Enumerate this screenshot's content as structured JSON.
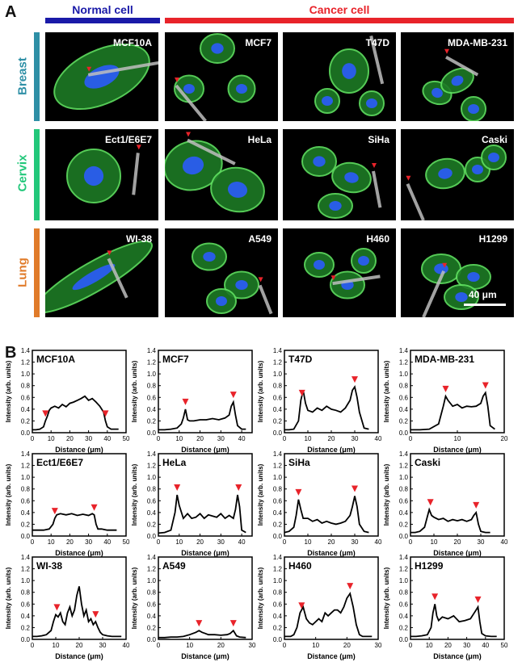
{
  "panel_a": {
    "letter": "A",
    "normal_header": "Normal cell",
    "cancer_header": "Cancer cell",
    "colors": {
      "normal": "#1a1aa8",
      "cancer": "#e8232a",
      "breast": "#2e8fa6",
      "cervix": "#22c77a",
      "lung": "#e07b2a"
    },
    "organs": [
      "Breast",
      "Cervix",
      "Lung"
    ],
    "rows": [
      [
        "MCF10A",
        "MCF7",
        "T47D",
        "MDA-MB-231"
      ],
      [
        "Ect1/E6E7",
        "HeLa",
        "SiHa",
        "Caski"
      ],
      [
        "WI-38",
        "A549",
        "H460",
        "H1299"
      ]
    ],
    "scale_bar": "40 μm"
  },
  "panel_b": {
    "letter": "B",
    "xlabel": "Distance (μm)",
    "ylabel": "Intensity (arb. units)"
  },
  "chart_data": [
    {
      "type": "line",
      "title": "MCF10A",
      "xlim": [
        0,
        50
      ],
      "ylim": [
        0,
        1.4
      ],
      "xticks": [
        0,
        10,
        20,
        30,
        40,
        50
      ],
      "yticks": [
        0.0,
        0.2,
        0.4,
        0.6,
        0.8,
        1.0,
        1.2,
        1.4
      ],
      "x": [
        0,
        2,
        4,
        6,
        7,
        8,
        9,
        10,
        12,
        14,
        16,
        18,
        20,
        22,
        24,
        26,
        28,
        30,
        32,
        34,
        36,
        38,
        39,
        40,
        42,
        44,
        46
      ],
      "y": [
        0.05,
        0.05,
        0.06,
        0.1,
        0.2,
        0.28,
        0.38,
        0.42,
        0.45,
        0.42,
        0.48,
        0.44,
        0.5,
        0.52,
        0.55,
        0.58,
        0.62,
        0.55,
        0.58,
        0.52,
        0.45,
        0.35,
        0.2,
        0.1,
        0.06,
        0.06,
        0.06
      ],
      "markers": [
        7,
        39
      ]
    },
    {
      "type": "line",
      "title": "MCF7",
      "xlim": [
        0,
        45
      ],
      "ylim": [
        0,
        1.4
      ],
      "xticks": [
        0,
        10,
        20,
        30,
        40
      ],
      "yticks": [
        0.0,
        0.2,
        0.4,
        0.6,
        0.8,
        1.0,
        1.2,
        1.4
      ],
      "x": [
        0,
        3,
        6,
        9,
        11,
        12,
        13,
        14,
        15,
        17,
        20,
        23,
        26,
        29,
        32,
        34,
        35,
        36,
        37,
        38,
        40,
        42
      ],
      "y": [
        0.05,
        0.05,
        0.06,
        0.08,
        0.15,
        0.25,
        0.4,
        0.22,
        0.2,
        0.2,
        0.22,
        0.22,
        0.24,
        0.22,
        0.25,
        0.3,
        0.45,
        0.52,
        0.3,
        0.12,
        0.06,
        0.06
      ],
      "markers": [
        13,
        36
      ]
    },
    {
      "type": "line",
      "title": "T47D",
      "xlim": [
        0,
        40
      ],
      "ylim": [
        0,
        1.4
      ],
      "xticks": [
        0,
        10,
        20,
        30,
        40
      ],
      "yticks": [
        0.0,
        0.2,
        0.4,
        0.6,
        0.8,
        1.0,
        1.2,
        1.4
      ],
      "x": [
        0,
        2,
        4,
        6,
        7,
        8,
        9,
        10,
        12,
        14,
        16,
        18,
        20,
        22,
        24,
        26,
        28,
        29,
        30,
        31,
        32,
        34,
        36
      ],
      "y": [
        0.05,
        0.05,
        0.06,
        0.2,
        0.55,
        0.72,
        0.5,
        0.38,
        0.35,
        0.42,
        0.38,
        0.45,
        0.4,
        0.38,
        0.35,
        0.42,
        0.55,
        0.72,
        0.78,
        0.6,
        0.35,
        0.08,
        0.06
      ],
      "markers": [
        7.5,
        30
      ]
    },
    {
      "type": "line",
      "title": "MDA-MB-231",
      "xlim": [
        0,
        20
      ],
      "ylim": [
        0,
        1.4
      ],
      "xticks": [
        0,
        10,
        20
      ],
      "yticks": [
        0.0,
        0.2,
        0.4,
        0.6,
        0.8,
        1.0,
        1.2,
        1.4
      ],
      "x": [
        0,
        2,
        4,
        6,
        7,
        7.5,
        8,
        9,
        10,
        11,
        12,
        13,
        14,
        15,
        15.5,
        16,
        16.5,
        17,
        18
      ],
      "y": [
        0.05,
        0.05,
        0.06,
        0.15,
        0.45,
        0.62,
        0.55,
        0.45,
        0.48,
        0.42,
        0.45,
        0.44,
        0.45,
        0.5,
        0.62,
        0.68,
        0.45,
        0.12,
        0.06
      ],
      "markers": [
        7.5,
        16
      ]
    },
    {
      "type": "line",
      "title": "Ect1/E6E7",
      "xlim": [
        0,
        50
      ],
      "ylim": [
        0,
        1.4
      ],
      "xticks": [
        0,
        10,
        20,
        30,
        40,
        50
      ],
      "yticks": [
        0.0,
        0.2,
        0.4,
        0.6,
        0.8,
        1.0,
        1.2,
        1.4
      ],
      "x": [
        0,
        3,
        6,
        9,
        11,
        12,
        13,
        15,
        18,
        21,
        24,
        27,
        30,
        32,
        33,
        34,
        35,
        37,
        40,
        43,
        45
      ],
      "y": [
        0.1,
        0.1,
        0.1,
        0.12,
        0.2,
        0.3,
        0.36,
        0.38,
        0.36,
        0.38,
        0.35,
        0.37,
        0.35,
        0.38,
        0.36,
        0.2,
        0.12,
        0.12,
        0.1,
        0.1,
        0.1
      ],
      "markers": [
        12,
        33
      ]
    },
    {
      "type": "line",
      "title": "HeLa",
      "xlim": [
        0,
        45
      ],
      "ylim": [
        0,
        1.4
      ],
      "xticks": [
        0,
        10,
        20,
        30,
        40
      ],
      "yticks": [
        0.0,
        0.2,
        0.4,
        0.6,
        0.8,
        1.0,
        1.2,
        1.4
      ],
      "x": [
        0,
        3,
        6,
        8,
        9,
        10,
        12,
        14,
        16,
        18,
        20,
        22,
        24,
        26,
        28,
        30,
        32,
        34,
        36,
        37,
        38,
        39,
        40,
        42
      ],
      "y": [
        0.05,
        0.06,
        0.1,
        0.4,
        0.7,
        0.52,
        0.3,
        0.38,
        0.3,
        0.32,
        0.38,
        0.3,
        0.36,
        0.34,
        0.32,
        0.38,
        0.3,
        0.35,
        0.3,
        0.45,
        0.7,
        0.5,
        0.1,
        0.06
      ],
      "markers": [
        9,
        38.5
      ]
    },
    {
      "type": "line",
      "title": "SiHa",
      "xlim": [
        0,
        40
      ],
      "ylim": [
        0,
        1.4
      ],
      "xticks": [
        0,
        10,
        20,
        30,
        40
      ],
      "yticks": [
        0.0,
        0.2,
        0.4,
        0.6,
        0.8,
        1.0,
        1.2,
        1.4
      ],
      "x": [
        0,
        2,
        4,
        5,
        6,
        7,
        8,
        10,
        12,
        14,
        16,
        18,
        20,
        22,
        24,
        26,
        28,
        29,
        30,
        31,
        32,
        34,
        36
      ],
      "y": [
        0.06,
        0.08,
        0.15,
        0.35,
        0.62,
        0.45,
        0.3,
        0.3,
        0.25,
        0.28,
        0.22,
        0.25,
        0.22,
        0.2,
        0.22,
        0.25,
        0.35,
        0.5,
        0.68,
        0.5,
        0.2,
        0.08,
        0.06
      ],
      "markers": [
        6,
        30
      ]
    },
    {
      "type": "line",
      "title": "Caski",
      "xlim": [
        0,
        40
      ],
      "ylim": [
        0,
        1.4
      ],
      "xticks": [
        0,
        10,
        20,
        30,
        40
      ],
      "yticks": [
        0.0,
        0.2,
        0.4,
        0.6,
        0.8,
        1.0,
        1.2,
        1.4
      ],
      "x": [
        0,
        2,
        4,
        6,
        7,
        8,
        9,
        10,
        12,
        14,
        16,
        18,
        20,
        22,
        24,
        26,
        27,
        28,
        29,
        30,
        32,
        34
      ],
      "y": [
        0.06,
        0.06,
        0.08,
        0.15,
        0.3,
        0.45,
        0.35,
        0.32,
        0.28,
        0.3,
        0.25,
        0.28,
        0.26,
        0.28,
        0.25,
        0.28,
        0.35,
        0.4,
        0.2,
        0.08,
        0.06,
        0.06
      ],
      "markers": [
        8.5,
        28
      ]
    },
    {
      "type": "line",
      "title": "WI-38",
      "xlim": [
        0,
        40
      ],
      "ylim": [
        0,
        1.4
      ],
      "xticks": [
        0,
        10,
        20,
        30,
        40
      ],
      "yticks": [
        0.0,
        0.2,
        0.4,
        0.6,
        0.8,
        1.0,
        1.2,
        1.4
      ],
      "x": [
        0,
        2,
        4,
        6,
        8,
        9,
        10,
        11,
        12,
        13,
        14,
        15,
        16,
        17,
        18,
        19,
        20,
        21,
        22,
        23,
        24,
        25,
        26,
        27,
        28,
        29,
        30,
        32,
        34,
        36,
        38
      ],
      "y": [
        0.05,
        0.05,
        0.06,
        0.08,
        0.15,
        0.3,
        0.42,
        0.38,
        0.45,
        0.3,
        0.25,
        0.45,
        0.55,
        0.4,
        0.5,
        0.75,
        0.9,
        0.6,
        0.4,
        0.5,
        0.3,
        0.35,
        0.25,
        0.3,
        0.2,
        0.12,
        0.08,
        0.06,
        0.05,
        0.05,
        0.05
      ],
      "markers": [
        10.5,
        27
      ]
    },
    {
      "type": "line",
      "title": "A549",
      "xlim": [
        0,
        30
      ],
      "ylim": [
        0,
        1.4
      ],
      "xticks": [
        0,
        10,
        20,
        30
      ],
      "yticks": [
        0.0,
        0.2,
        0.4,
        0.6,
        0.8,
        1.0,
        1.2,
        1.4
      ],
      "x": [
        0,
        2,
        4,
        6,
        8,
        10,
        12,
        13,
        14,
        15,
        16,
        18,
        20,
        22,
        23,
        24,
        25,
        26,
        28
      ],
      "y": [
        0.03,
        0.03,
        0.04,
        0.04,
        0.05,
        0.08,
        0.12,
        0.15,
        0.12,
        0.1,
        0.08,
        0.08,
        0.07,
        0.08,
        0.1,
        0.15,
        0.06,
        0.04,
        0.03
      ],
      "markers": [
        13,
        24
      ]
    },
    {
      "type": "line",
      "title": "H460",
      "xlim": [
        0,
        30
      ],
      "ylim": [
        0,
        1.4
      ],
      "xticks": [
        0,
        10,
        20,
        30
      ],
      "yticks": [
        0.0,
        0.2,
        0.4,
        0.6,
        0.8,
        1.0,
        1.2,
        1.4
      ],
      "x": [
        0,
        2,
        3,
        4,
        5,
        6,
        7,
        8,
        9,
        10,
        11,
        12,
        13,
        14,
        15,
        16,
        17,
        18,
        19,
        20,
        21,
        22,
        23,
        24,
        25,
        26,
        28
      ],
      "y": [
        0.05,
        0.05,
        0.08,
        0.2,
        0.45,
        0.55,
        0.35,
        0.28,
        0.25,
        0.3,
        0.35,
        0.3,
        0.45,
        0.4,
        0.45,
        0.5,
        0.5,
        0.45,
        0.55,
        0.7,
        0.78,
        0.55,
        0.25,
        0.08,
        0.05,
        0.05,
        0.05
      ],
      "markers": [
        5.5,
        21
      ]
    },
    {
      "type": "line",
      "title": "H1299",
      "xlim": [
        0,
        50
      ],
      "ylim": [
        0,
        1.4
      ],
      "xticks": [
        0,
        10,
        20,
        30,
        40,
        50
      ],
      "yticks": [
        0.0,
        0.2,
        0.4,
        0.6,
        0.8,
        1.0,
        1.2,
        1.4
      ],
      "x": [
        0,
        3,
        6,
        9,
        11,
        12,
        13,
        14,
        15,
        17,
        20,
        23,
        26,
        29,
        32,
        34,
        35,
        36,
        37,
        38,
        40,
        43,
        46
      ],
      "y": [
        0.05,
        0.05,
        0.06,
        0.08,
        0.2,
        0.45,
        0.6,
        0.4,
        0.32,
        0.38,
        0.35,
        0.4,
        0.3,
        0.32,
        0.35,
        0.45,
        0.5,
        0.55,
        0.3,
        0.1,
        0.06,
        0.05,
        0.05
      ],
      "markers": [
        13,
        36
      ]
    }
  ]
}
